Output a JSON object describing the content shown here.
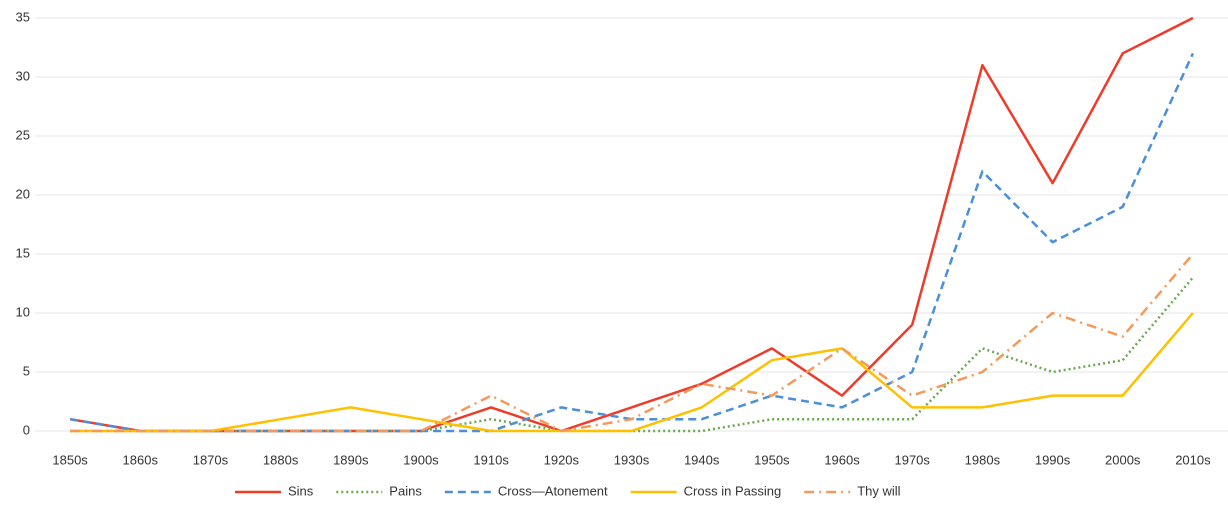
{
  "chart_data": {
    "type": "line",
    "categories": [
      "1850s",
      "1860s",
      "1870s",
      "1880s",
      "1890s",
      "1900s",
      "1910s",
      "1920s",
      "1930s",
      "1940s",
      "1950s",
      "1960s",
      "1970s",
      "1980s",
      "1990s",
      "2000s",
      "2010s"
    ],
    "series": [
      {
        "name": "Sins",
        "color": "#ee3b2a",
        "dash": "solid",
        "values": [
          1,
          0,
          0,
          0,
          0,
          0,
          2,
          0,
          2,
          4,
          7,
          3,
          9,
          31,
          21,
          32,
          35
        ]
      },
      {
        "name": "Pains",
        "color": "#6aa84f",
        "dash": "dotted",
        "values": [
          0,
          0,
          0,
          0,
          0,
          0,
          1,
          0,
          0,
          0,
          1,
          1,
          1,
          7,
          5,
          6,
          13
        ]
      },
      {
        "name": "Cross—Atonement",
        "color": "#4a8fd8",
        "dash": "dashed",
        "values": [
          1,
          0,
          0,
          0,
          0,
          0,
          0,
          2,
          1,
          1,
          3,
          2,
          5,
          22,
          16,
          19,
          32
        ]
      },
      {
        "name": "Cross in Passing",
        "color": "#ffc000",
        "dash": "solid",
        "values": [
          0,
          0,
          0,
          1,
          2,
          1,
          0,
          0,
          0,
          2,
          6,
          7,
          2,
          2,
          3,
          3,
          10
        ]
      },
      {
        "name": "Thy will",
        "color": "#f39a5b",
        "dash": "dashdot",
        "values": [
          0,
          0,
          0,
          0,
          0,
          0,
          3,
          0,
          1,
          4,
          3,
          7,
          3,
          5,
          10,
          8,
          15
        ]
      }
    ],
    "ylim": [
      0,
      35
    ],
    "yticks": [
      0,
      5,
      10,
      15,
      20,
      25,
      30,
      35
    ],
    "grid": true,
    "legend": "bottom"
  }
}
